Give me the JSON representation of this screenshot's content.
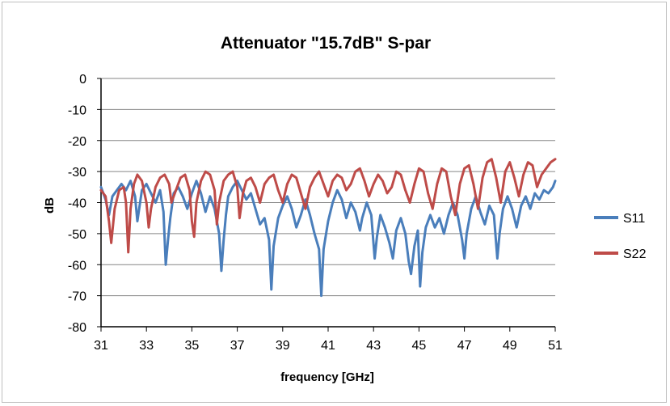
{
  "chart_data": {
    "type": "line",
    "title": "Attenuator \"15.7dB\" S-par",
    "xlabel": "frequency [GHz]",
    "ylabel": "dB",
    "xlim": [
      31,
      51
    ],
    "ylim": [
      -80,
      0
    ],
    "xticks": [
      "31",
      "33",
      "35",
      "37",
      "39",
      "41",
      "43",
      "45",
      "47",
      "49",
      "51"
    ],
    "yticks": [
      "0",
      "-10",
      "-20",
      "-30",
      "-40",
      "-50",
      "-60",
      "-70",
      "-80"
    ],
    "grid": "horizontal",
    "legend": "right",
    "series": [
      {
        "name": "S11",
        "color": "#4a7ebb",
        "points": [
          [
            31.0,
            -35
          ],
          [
            31.2,
            -39
          ],
          [
            31.35,
            -44
          ],
          [
            31.5,
            -38
          ],
          [
            31.7,
            -36
          ],
          [
            31.9,
            -34
          ],
          [
            32.1,
            -36
          ],
          [
            32.3,
            -33
          ],
          [
            32.5,
            -38
          ],
          [
            32.6,
            -46
          ],
          [
            32.7,
            -41
          ],
          [
            32.8,
            -36
          ],
          [
            33.0,
            -34
          ],
          [
            33.2,
            -37
          ],
          [
            33.4,
            -40
          ],
          [
            33.6,
            -36
          ],
          [
            33.75,
            -43
          ],
          [
            33.85,
            -60
          ],
          [
            33.95,
            -52
          ],
          [
            34.05,
            -45
          ],
          [
            34.2,
            -37
          ],
          [
            34.4,
            -35
          ],
          [
            34.6,
            -38
          ],
          [
            34.8,
            -42
          ],
          [
            35.0,
            -37
          ],
          [
            35.2,
            -33
          ],
          [
            35.4,
            -37
          ],
          [
            35.6,
            -43
          ],
          [
            35.8,
            -38
          ],
          [
            36.0,
            -42
          ],
          [
            36.2,
            -50
          ],
          [
            36.3,
            -62
          ],
          [
            36.4,
            -52
          ],
          [
            36.5,
            -44
          ],
          [
            36.6,
            -38
          ],
          [
            36.8,
            -35
          ],
          [
            37.0,
            -33
          ],
          [
            37.2,
            -36
          ],
          [
            37.4,
            -39
          ],
          [
            37.6,
            -37
          ],
          [
            37.8,
            -42
          ],
          [
            38.0,
            -47
          ],
          [
            38.2,
            -45
          ],
          [
            38.4,
            -52
          ],
          [
            38.5,
            -68
          ],
          [
            38.6,
            -54
          ],
          [
            38.8,
            -45
          ],
          [
            39.0,
            -41
          ],
          [
            39.2,
            -38
          ],
          [
            39.4,
            -42
          ],
          [
            39.6,
            -48
          ],
          [
            39.8,
            -44
          ],
          [
            40.0,
            -39
          ],
          [
            40.2,
            -44
          ],
          [
            40.4,
            -50
          ],
          [
            40.6,
            -55
          ],
          [
            40.7,
            -70
          ],
          [
            40.8,
            -55
          ],
          [
            41.0,
            -46
          ],
          [
            41.2,
            -40
          ],
          [
            41.4,
            -36
          ],
          [
            41.6,
            -39
          ],
          [
            41.8,
            -45
          ],
          [
            42.0,
            -40
          ],
          [
            42.2,
            -43
          ],
          [
            42.4,
            -49
          ],
          [
            42.5,
            -45
          ],
          [
            42.7,
            -40
          ],
          [
            42.9,
            -44
          ],
          [
            43.05,
            -58
          ],
          [
            43.15,
            -51
          ],
          [
            43.3,
            -44
          ],
          [
            43.5,
            -48
          ],
          [
            43.7,
            -53
          ],
          [
            43.85,
            -58
          ],
          [
            44.0,
            -49
          ],
          [
            44.2,
            -45
          ],
          [
            44.4,
            -50
          ],
          [
            44.55,
            -59
          ],
          [
            44.65,
            -63
          ],
          [
            44.8,
            -54
          ],
          [
            44.95,
            -49
          ],
          [
            45.05,
            -67
          ],
          [
            45.15,
            -56
          ],
          [
            45.3,
            -48
          ],
          [
            45.5,
            -44
          ],
          [
            45.7,
            -48
          ],
          [
            45.9,
            -45
          ],
          [
            46.1,
            -50
          ],
          [
            46.3,
            -44
          ],
          [
            46.5,
            -40
          ],
          [
            46.7,
            -44
          ],
          [
            46.9,
            -52
          ],
          [
            47.0,
            -58
          ],
          [
            47.1,
            -50
          ],
          [
            47.3,
            -42
          ],
          [
            47.5,
            -38
          ],
          [
            47.7,
            -43
          ],
          [
            47.9,
            -47
          ],
          [
            48.1,
            -41
          ],
          [
            48.3,
            -44
          ],
          [
            48.45,
            -58
          ],
          [
            48.55,
            -50
          ],
          [
            48.7,
            -42
          ],
          [
            48.9,
            -38
          ],
          [
            49.1,
            -42
          ],
          [
            49.3,
            -48
          ],
          [
            49.5,
            -41
          ],
          [
            49.7,
            -38
          ],
          [
            49.9,
            -42
          ],
          [
            50.1,
            -37
          ],
          [
            50.3,
            -39
          ],
          [
            50.5,
            -36
          ],
          [
            50.7,
            -37
          ],
          [
            50.9,
            -35
          ],
          [
            51.0,
            -33
          ]
        ]
      },
      {
        "name": "S22",
        "color": "#be4b48",
        "points": [
          [
            31.0,
            -36
          ],
          [
            31.2,
            -38
          ],
          [
            31.35,
            -46
          ],
          [
            31.45,
            -53
          ],
          [
            31.6,
            -42
          ],
          [
            31.8,
            -36
          ],
          [
            32.0,
            -35
          ],
          [
            32.1,
            -40
          ],
          [
            32.2,
            -56
          ],
          [
            32.3,
            -42
          ],
          [
            32.45,
            -34
          ],
          [
            32.6,
            -31
          ],
          [
            32.8,
            -33
          ],
          [
            33.0,
            -40
          ],
          [
            33.1,
            -48
          ],
          [
            33.2,
            -42
          ],
          [
            33.4,
            -35
          ],
          [
            33.6,
            -32
          ],
          [
            33.8,
            -31
          ],
          [
            34.0,
            -34
          ],
          [
            34.1,
            -40
          ],
          [
            34.3,
            -36
          ],
          [
            34.5,
            -32
          ],
          [
            34.7,
            -31
          ],
          [
            34.9,
            -36
          ],
          [
            35.0,
            -46
          ],
          [
            35.1,
            -51
          ],
          [
            35.2,
            -40
          ],
          [
            35.4,
            -33
          ],
          [
            35.6,
            -30
          ],
          [
            35.8,
            -31
          ],
          [
            36.0,
            -36
          ],
          [
            36.1,
            -47
          ],
          [
            36.2,
            -40
          ],
          [
            36.4,
            -33
          ],
          [
            36.6,
            -31
          ],
          [
            36.8,
            -30
          ],
          [
            37.0,
            -35
          ],
          [
            37.1,
            -45
          ],
          [
            37.25,
            -37
          ],
          [
            37.4,
            -33
          ],
          [
            37.6,
            -32
          ],
          [
            37.8,
            -35
          ],
          [
            38.0,
            -40
          ],
          [
            38.2,
            -34
          ],
          [
            38.4,
            -32
          ],
          [
            38.6,
            -31
          ],
          [
            38.8,
            -36
          ],
          [
            39.0,
            -40
          ],
          [
            39.2,
            -34
          ],
          [
            39.4,
            -31
          ],
          [
            39.6,
            -32
          ],
          [
            39.8,
            -37
          ],
          [
            40.0,
            -42
          ],
          [
            40.2,
            -35
          ],
          [
            40.4,
            -32
          ],
          [
            40.6,
            -30
          ],
          [
            40.8,
            -34
          ],
          [
            41.0,
            -38
          ],
          [
            41.2,
            -33
          ],
          [
            41.4,
            -31
          ],
          [
            41.6,
            -32
          ],
          [
            41.8,
            -36
          ],
          [
            42.0,
            -34
          ],
          [
            42.2,
            -30
          ],
          [
            42.4,
            -29
          ],
          [
            42.6,
            -33
          ],
          [
            42.8,
            -38
          ],
          [
            43.0,
            -34
          ],
          [
            43.2,
            -31
          ],
          [
            43.4,
            -33
          ],
          [
            43.6,
            -37
          ],
          [
            43.8,
            -35
          ],
          [
            44.0,
            -30
          ],
          [
            44.2,
            -31
          ],
          [
            44.4,
            -36
          ],
          [
            44.6,
            -40
          ],
          [
            44.8,
            -34
          ],
          [
            45.0,
            -29
          ],
          [
            45.2,
            -30
          ],
          [
            45.4,
            -37
          ],
          [
            45.6,
            -42
          ],
          [
            45.8,
            -34
          ],
          [
            46.0,
            -29
          ],
          [
            46.2,
            -30
          ],
          [
            46.4,
            -38
          ],
          [
            46.6,
            -44
          ],
          [
            46.8,
            -34
          ],
          [
            47.0,
            -29
          ],
          [
            47.2,
            -28
          ],
          [
            47.4,
            -34
          ],
          [
            47.6,
            -42
          ],
          [
            47.8,
            -32
          ],
          [
            48.0,
            -27
          ],
          [
            48.2,
            -26
          ],
          [
            48.4,
            -32
          ],
          [
            48.6,
            -40
          ],
          [
            48.8,
            -30
          ],
          [
            49.0,
            -27
          ],
          [
            49.2,
            -32
          ],
          [
            49.4,
            -38
          ],
          [
            49.6,
            -31
          ],
          [
            49.8,
            -27
          ],
          [
            50.0,
            -28
          ],
          [
            50.2,
            -35
          ],
          [
            50.4,
            -31
          ],
          [
            50.6,
            -29
          ],
          [
            50.8,
            -27
          ],
          [
            51.0,
            -26
          ]
        ]
      }
    ]
  }
}
